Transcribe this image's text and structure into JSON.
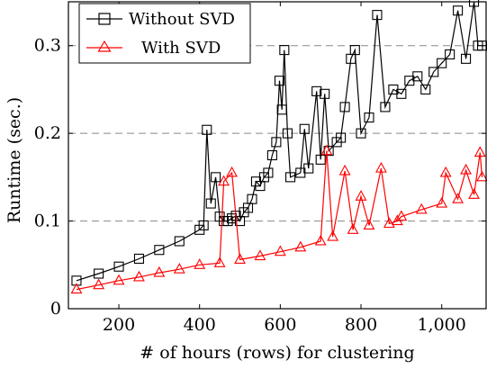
{
  "chart_data": {
    "type": "line",
    "title": "",
    "xlabel": "# of hours (rows) for clustering",
    "ylabel": "Runtime (sec.)",
    "xlim": [
      75,
      1110
    ],
    "ylim": [
      0,
      0.35
    ],
    "x_ticks": [
      200,
      400,
      600,
      800,
      1000
    ],
    "x_tick_labels": [
      "200",
      "400",
      "600",
      "800",
      "1,000"
    ],
    "y_ticks": [
      0,
      0.1,
      0.2,
      0.3
    ],
    "y_tick_labels": [
      "0",
      "0.1",
      "0.2",
      "0.3"
    ],
    "grid": "horizontal dashed at y ticks",
    "legend_position": "top-left",
    "series": [
      {
        "name": "Without SVD",
        "color": "#000000",
        "marker": "square",
        "x": [
          95,
          150,
          200,
          250,
          300,
          350,
          400,
          410,
          418,
          428,
          440,
          450,
          460,
          470,
          480,
          490,
          500,
          510,
          520,
          530,
          540,
          550,
          560,
          570,
          580,
          590,
          598,
          604,
          610,
          618,
          625,
          650,
          660,
          670,
          690,
          700,
          710,
          720,
          740,
          750,
          760,
          775,
          785,
          800,
          820,
          840,
          860,
          880,
          900,
          920,
          940,
          960,
          980,
          1000,
          1020,
          1040,
          1060,
          1080,
          1090,
          1100
        ],
        "y": [
          0.032,
          0.04,
          0.048,
          0.057,
          0.067,
          0.077,
          0.09,
          0.095,
          0.204,
          0.12,
          0.15,
          0.105,
          0.1,
          0.1,
          0.103,
          0.106,
          0.1,
          0.11,
          0.115,
          0.125,
          0.145,
          0.14,
          0.15,
          0.155,
          0.175,
          0.19,
          0.26,
          0.227,
          0.295,
          0.2,
          0.15,
          0.155,
          0.205,
          0.16,
          0.248,
          0.17,
          0.245,
          0.18,
          0.19,
          0.195,
          0.23,
          0.285,
          0.295,
          0.2,
          0.218,
          0.335,
          0.23,
          0.25,
          0.245,
          0.26,
          0.265,
          0.25,
          0.27,
          0.28,
          0.29,
          0.34,
          0.285,
          0.35,
          0.3,
          0.3
        ]
      },
      {
        "name": "With SVD",
        "color": "#ff0000",
        "marker": "triangle",
        "x": [
          95,
          150,
          200,
          250,
          300,
          350,
          400,
          450,
          460,
          480,
          500,
          550,
          600,
          650,
          700,
          715,
          730,
          760,
          780,
          800,
          820,
          850,
          870,
          890,
          900,
          950,
          1000,
          1010,
          1040,
          1060,
          1080,
          1095,
          1100
        ],
        "y": [
          0.022,
          0.027,
          0.032,
          0.036,
          0.041,
          0.045,
          0.05,
          0.052,
          0.145,
          0.155,
          0.056,
          0.06,
          0.065,
          0.07,
          0.077,
          0.18,
          0.082,
          0.157,
          0.09,
          0.128,
          0.095,
          0.16,
          0.097,
          0.1,
          0.105,
          0.113,
          0.12,
          0.155,
          0.125,
          0.158,
          0.13,
          0.178,
          0.15
        ]
      }
    ]
  }
}
